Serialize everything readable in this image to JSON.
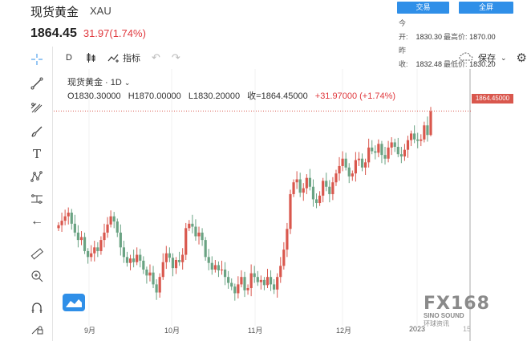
{
  "header": {
    "name": "现货黄金",
    "symbol": "XAU",
    "price": "1864.45",
    "change": "31.97(1.74%)",
    "trade_label": "交易",
    "fullscreen_label": "全屏",
    "stats": {
      "open_label": "今开:",
      "open_value": "1830.30",
      "high_label": "最高价:",
      "high_value": "1870.00",
      "prev_label": "昨收:",
      "prev_value": "1832.48",
      "low_label": "最低价:",
      "low_value": "1830.20"
    }
  },
  "toolbar": {
    "interval": "D",
    "indicators_label": "指标",
    "save_label": "保存"
  },
  "legend": {
    "title": "现货黄金 · 1D",
    "o": "O1830.30000",
    "h": "H1870.00000",
    "l": "L1830.20000",
    "c": "收=1864.45000",
    "chg": "+31.97000 (+1.74%)"
  },
  "price_tag": "1864.45000",
  "xaxis": {
    "ticks": [
      "9月",
      "10月",
      "11月",
      "12月",
      "2023",
      "15"
    ]
  },
  "watermark": {
    "logo": "FX168",
    "sub": "SINO SOUND",
    "sub2": "环球资讯"
  },
  "colors": {
    "up": "#d9574d",
    "down": "#6aa383",
    "accent": "#2f8fe8"
  },
  "chart_data": {
    "type": "candlestick",
    "x_ticks": [
      "9月",
      "10月",
      "11月",
      "12月",
      "2023",
      "15"
    ],
    "last_close": 1864.45,
    "ohlc_last": {
      "open": 1830.3,
      "high": 1870.0,
      "low": 1830.2,
      "close": 1864.45
    },
    "closes": [
      1710,
      1716,
      1722,
      1727,
      1712,
      1700,
      1690,
      1694,
      1675,
      1667,
      1672,
      1680,
      1675,
      1690,
      1700,
      1711,
      1722,
      1715,
      1700,
      1680,
      1667,
      1659,
      1665,
      1660,
      1670,
      1662,
      1650,
      1642,
      1646,
      1630,
      1619,
      1640,
      1660,
      1672,
      1666,
      1652,
      1663,
      1660,
      1670,
      1706,
      1712,
      1708,
      1695,
      1700,
      1690,
      1667,
      1659,
      1650,
      1656,
      1649,
      1650,
      1640,
      1632,
      1627,
      1618,
      1630,
      1640,
      1622,
      1625,
      1645,
      1640,
      1633,
      1636,
      1629,
      1640,
      1630,
      1623,
      1640,
      1655,
      1677,
      1705,
      1752,
      1768,
      1772,
      1754,
      1760,
      1774,
      1762,
      1745,
      1740,
      1750,
      1770,
      1762,
      1752,
      1768,
      1780,
      1790,
      1800,
      1788,
      1776,
      1780,
      1798,
      1800,
      1788,
      1795,
      1815,
      1810,
      1808,
      1820,
      1805,
      1800,
      1815,
      1822,
      1816,
      1806,
      1803,
      1812,
      1825,
      1834,
      1826,
      1824,
      1826,
      1845,
      1832,
      1864
    ]
  }
}
